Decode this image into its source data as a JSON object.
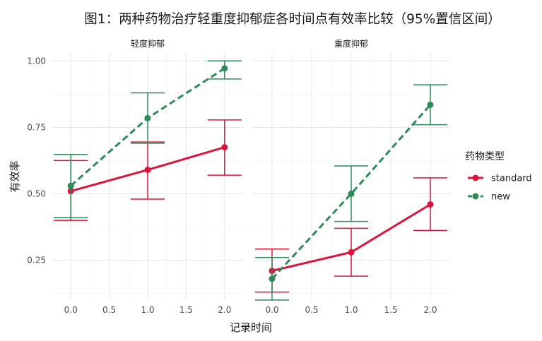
{
  "chart_data": {
    "type": "line",
    "title": "图1：两种药物治疗轻重度抑郁症各时间点有效率比较（95%置信区间）",
    "xlabel": "记录时间",
    "ylabel": "有效率",
    "x_ticks": [
      "0.0",
      "0.5",
      "1.0",
      "1.5",
      "2.0"
    ],
    "y_ticks": [
      "0.25",
      "0.50",
      "0.75",
      "1.00"
    ],
    "xlim": [
      -0.25,
      2.25
    ],
    "ylim": [
      0.1,
      1.03
    ],
    "grid": true,
    "legend": {
      "title": "药物类型",
      "position": "right",
      "entries": [
        "standard",
        "new"
      ]
    },
    "series_styles": [
      {
        "name": "standard",
        "color": "#DC143C",
        "dash": "solid"
      },
      {
        "name": "new",
        "color": "#2E8B57",
        "dash": "dashed"
      }
    ],
    "panels": [
      {
        "label": "轻度抑郁",
        "series": [
          {
            "name": "standard",
            "x": [
              0,
              1,
              2
            ],
            "y": [
              0.51,
              0.59,
              0.675
            ],
            "lower": [
              0.4,
              0.48,
              0.57
            ],
            "upper": [
              0.625,
              0.695,
              0.778
            ]
          },
          {
            "name": "new",
            "x": [
              0,
              1,
              2
            ],
            "y": [
              0.53,
              0.785,
              0.972
            ],
            "lower": [
              0.41,
              0.69,
              0.932
            ],
            "upper": [
              0.648,
              0.88,
              1.0
            ]
          }
        ]
      },
      {
        "label": "重度抑郁",
        "series": [
          {
            "name": "standard",
            "x": [
              0,
              1,
              2
            ],
            "y": [
              0.21,
              0.28,
              0.46
            ],
            "lower": [
              0.13,
              0.19,
              0.362
            ],
            "upper": [
              0.292,
              0.37,
              0.56
            ]
          },
          {
            "name": "new",
            "x": [
              0,
              1,
              2
            ],
            "y": [
              0.18,
              0.5,
              0.835
            ],
            "lower": [
              0.1,
              0.396,
              0.76
            ],
            "upper": [
              0.26,
              0.605,
              0.91
            ]
          }
        ]
      }
    ]
  }
}
